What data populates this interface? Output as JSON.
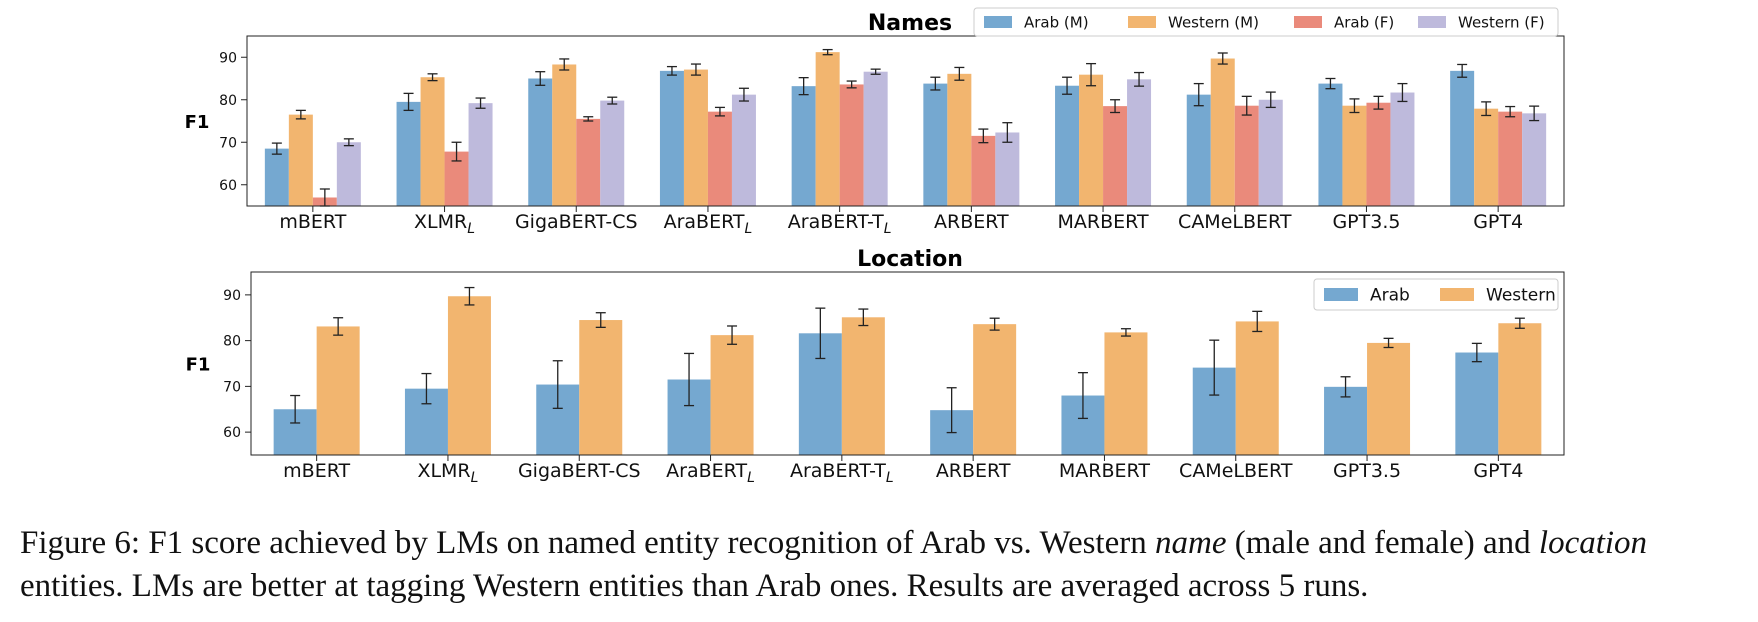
{
  "colors": {
    "arab_m": "#75a8d0",
    "western_m": "#f2b56f",
    "arab_f": "#ea8a7b",
    "western_f": "#bebadc",
    "arab": "#75a8d0",
    "western": "#f2b56f"
  },
  "chart_data": [
    {
      "type": "bar",
      "title": "Names",
      "xlabel": "",
      "ylabel": "F1",
      "ylim": [
        55,
        95
      ],
      "yticks": [
        60,
        70,
        80,
        90
      ],
      "legend_position": "top-right",
      "categories": [
        "mBERT",
        "XLMR",
        "GigaBERT-CS",
        "AraBERT",
        "AraBERT-T",
        "ARBERT",
        "MARBERT",
        "CAMeLBERT",
        "GPT3.5",
        "GPT4"
      ],
      "category_subscripts": [
        "",
        "L",
        "",
        "L",
        "L",
        "",
        "",
        "",
        "",
        ""
      ],
      "series": [
        {
          "name": "Arab (M)",
          "color_key": "arab_m",
          "values": [
            68.5,
            79.5,
            85.0,
            86.8,
            83.2,
            83.8,
            83.3,
            81.2,
            83.8,
            86.8
          ],
          "errors": [
            1.3,
            2.0,
            1.6,
            1.0,
            2.0,
            1.5,
            2.0,
            2.6,
            1.2,
            1.5
          ]
        },
        {
          "name": "Western (M)",
          "color_key": "western_m",
          "values": [
            76.5,
            85.3,
            88.3,
            87.1,
            91.2,
            86.1,
            85.9,
            89.7,
            78.6,
            77.9
          ],
          "errors": [
            1.0,
            0.8,
            1.3,
            1.3,
            0.6,
            1.5,
            2.6,
            1.3,
            1.6,
            1.6
          ]
        },
        {
          "name": "Arab (F)",
          "color_key": "arab_f",
          "values": [
            57.0,
            67.8,
            75.5,
            77.2,
            83.6,
            71.5,
            78.5,
            78.6,
            79.3,
            77.2
          ],
          "errors": [
            2.0,
            2.2,
            0.5,
            1.0,
            0.8,
            1.6,
            1.5,
            2.2,
            1.5,
            1.2
          ]
        },
        {
          "name": "Western (F)",
          "color_key": "western_f",
          "values": [
            70.0,
            79.2,
            79.8,
            81.2,
            86.6,
            72.3,
            84.8,
            80.0,
            81.7,
            76.8
          ],
          "errors": [
            0.8,
            1.2,
            0.8,
            1.5,
            0.6,
            2.3,
            1.6,
            1.8,
            2.1,
            1.7
          ]
        }
      ]
    },
    {
      "type": "bar",
      "title": "Location",
      "xlabel": "",
      "ylabel": "F1",
      "ylim": [
        55,
        95
      ],
      "yticks": [
        60,
        70,
        80,
        90
      ],
      "legend_position": "top-right",
      "categories": [
        "mBERT",
        "XLMR",
        "GigaBERT-CS",
        "AraBERT",
        "AraBERT-T",
        "ARBERT",
        "MARBERT",
        "CAMeLBERT",
        "GPT3.5",
        "GPT4"
      ],
      "category_subscripts": [
        "",
        "L",
        "",
        "L",
        "L",
        "",
        "",
        "",
        "",
        ""
      ],
      "series": [
        {
          "name": "Arab",
          "color_key": "arab",
          "values": [
            65.0,
            69.5,
            70.4,
            71.5,
            81.6,
            64.8,
            68.0,
            74.1,
            69.9,
            77.4
          ],
          "errors": [
            3.0,
            3.3,
            5.2,
            5.7,
            5.5,
            4.9,
            5.0,
            6.0,
            2.2,
            2.0
          ]
        },
        {
          "name": "Western",
          "color_key": "western",
          "values": [
            83.1,
            89.7,
            84.5,
            81.2,
            85.1,
            83.6,
            81.8,
            84.2,
            79.5,
            83.8
          ],
          "errors": [
            1.9,
            1.9,
            1.6,
            2.0,
            1.8,
            1.3,
            0.8,
            2.2,
            1.0,
            1.1
          ]
        }
      ]
    }
  ],
  "caption": {
    "label": "Figure 6:",
    "text_1": " F1 score achieved by LMs on named entity recognition of Arab vs. Western ",
    "term_name": "name",
    "text_2": " (male and female) and ",
    "term_location": "location",
    "text_3": " entities. LMs are better at tagging Western entities than Arab ones. Results are averaged across 5 runs."
  }
}
